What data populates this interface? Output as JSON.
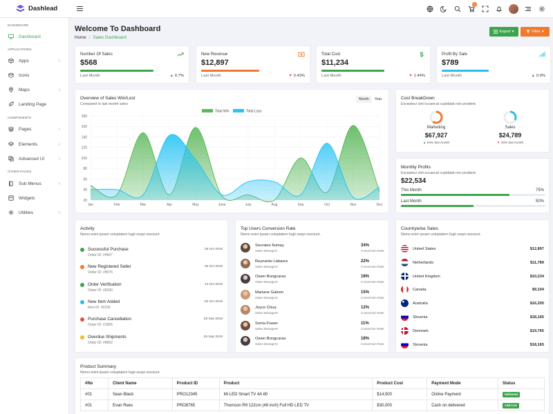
{
  "app": {
    "name": "Dashlead"
  },
  "topbar": {
    "cart_badge": "5",
    "icons": [
      "globe-icon",
      "moon-icon",
      "search-icon",
      "cart-icon",
      "fullscreen-icon",
      "bell-icon",
      "avatar",
      "menu-lines-icon",
      "gear-icon"
    ]
  },
  "sidebar": {
    "sections": [
      {
        "label": "DASHBOARD",
        "items": [
          {
            "label": "Dashboard",
            "icon": "monitor-icon",
            "active": true,
            "chevron": false
          }
        ]
      },
      {
        "label": "APPLICATIONS",
        "items": [
          {
            "label": "Apps",
            "icon": "cube-icon",
            "chevron": true
          },
          {
            "label": "Icons",
            "icon": "box-icon",
            "chevron": false
          },
          {
            "label": "Maps",
            "icon": "map-pin-icon",
            "chevron": true
          },
          {
            "label": "Landing Page",
            "icon": "rocket-icon",
            "chevron": false
          }
        ]
      },
      {
        "label": "COMPONENTS",
        "items": [
          {
            "label": "Pages",
            "icon": "layers-icon",
            "chevron": true
          },
          {
            "label": "Elements",
            "icon": "stack-icon",
            "chevron": true
          },
          {
            "label": "Advanced UI",
            "icon": "layers2-icon",
            "chevron": true
          }
        ]
      },
      {
        "label": "OTHER PAGES",
        "items": [
          {
            "label": "Sub Menus",
            "icon": "book-icon",
            "chevron": true
          },
          {
            "label": "Widgets",
            "icon": "widgets-icon",
            "chevron": false
          },
          {
            "label": "Utilities",
            "icon": "settings-icon",
            "chevron": true
          }
        ]
      }
    ]
  },
  "header": {
    "title": "Welcome To Dashboard",
    "breadcrumb": {
      "home": "Home",
      "current": "Sales Dashboard"
    },
    "export_label": "Export",
    "filter_label": "Filter"
  },
  "colors": {
    "green": "#3da44e",
    "orange": "#f0792b",
    "blue": "#2bbcf0",
    "red": "#e84a3c"
  },
  "stats": [
    {
      "label": "Number Of Sales",
      "value": "$568",
      "foot": "Last Month",
      "change": "0.7%",
      "dir": "up",
      "color": "#3da44e",
      "progress": 0.7,
      "icon": "trend-up-icon"
    },
    {
      "label": "New Revenue",
      "value": "$12,897",
      "foot": "Last Month",
      "change": "0.43%",
      "dir": "down",
      "color": "#f0792b",
      "progress": 0.55,
      "icon": "cash-icon"
    },
    {
      "label": "Total Cost",
      "value": "$11,234",
      "foot": "Last Month",
      "change": "1.44%",
      "dir": "down",
      "color": "#3da44e",
      "progress": 0.6,
      "icon": "dollar-icon"
    },
    {
      "label": "Profit By Sale",
      "value": "$789",
      "foot": "Last Month",
      "change": "0.9%",
      "dir": "up",
      "color": "#2bbcf0",
      "progress": 0.45,
      "icon": "signal-icon"
    }
  ],
  "overview": {
    "title": "Overview of Sales Win/Lost",
    "subtitle": "Compared to last month sales",
    "toggle": [
      "Month",
      "Year"
    ]
  },
  "chart_data": {
    "type": "area",
    "categories": [
      "Jan",
      "Feb",
      "Mar",
      "Apr",
      "May",
      "June",
      "July",
      "Aug",
      "Sep",
      "Oct",
      "Nov",
      "Dec"
    ],
    "series": [
      {
        "name": "Total Win",
        "color": "#5cb85c",
        "values": [
          48,
          30,
          148,
          30,
          158,
          28,
          30,
          20,
          100,
          35,
          162,
          36
        ]
      },
      {
        "name": "Total Loss",
        "color": "#2bc4f3",
        "values": [
          40,
          40,
          30,
          143,
          97,
          30,
          55,
          55,
          30,
          128,
          25,
          45
        ]
      }
    ],
    "ylim": [
      20,
      180
    ],
    "yticks": [
      20,
      40,
      60,
      80,
      100,
      120,
      140,
      160,
      180
    ],
    "legend": "top-center",
    "grid": true
  },
  "cost": {
    "title": "Cost BreakDown",
    "subtitle": "Excepteur sint occaecat cupidatat non proident.",
    "items": [
      {
        "name": "Marketing",
        "value": "$67,927",
        "change": "54% last month",
        "dir": "up",
        "color": "#f0792b",
        "fraction": 0.6
      },
      {
        "name": "Sales",
        "value": "$24,789",
        "change": "33% last month",
        "dir": "down",
        "color": "#2bbcf0",
        "fraction": 0.33
      }
    ]
  },
  "monthly": {
    "title": "Monthly Profits",
    "subtitle": "Excepteur sint occaecat cupidatat non proident.",
    "value": "$22,534",
    "rows": [
      {
        "label": "This Month",
        "pct": "75%",
        "fraction": 0.75
      },
      {
        "label": "Last Month",
        "pct": "50%",
        "fraction": 0.5
      }
    ]
  },
  "activity": {
    "title": "Activity",
    "subtitle": "Nemo enim ipsam voluptatem fugit sequi nesciunt.",
    "items": [
      {
        "title": "Successful Purchase",
        "sub": "Order ID: #4567",
        "date": "29 Oct 2019",
        "color": "#3da44e"
      },
      {
        "title": "New Registered Seller",
        "sub": "Order ID: #8976",
        "date": "25 Oct 2019",
        "color": "#f0792b"
      },
      {
        "title": "Order Verification",
        "sub": "Order ID: #6290",
        "date": "14 Oct 2019",
        "color": "#3da44e"
      },
      {
        "title": "New Item Added",
        "sub": "Item ID: #0235",
        "date": "02 Oct 2019",
        "color": "#2bbcf0"
      },
      {
        "title": "Purchase Cancellation",
        "sub": "Order ID: #1905",
        "date": "28 Sep 2019",
        "color": "#e84a3c"
      },
      {
        "title": "Overdue Shipments",
        "sub": "Order ID: #8902",
        "date": "25 Sep 2019",
        "color": "#f5b82e"
      }
    ]
  },
  "top_users": {
    "title": "Top Users Conversion Rate",
    "subtitle": "Nemo enim ipsam voluptatem fugit sequi nesciunt.",
    "items": [
      {
        "name": "Socrates Itumay",
        "role": "Sales Manager1",
        "pct": "34%",
        "pct_label": "Conversion Rate",
        "tone": "#5a4a3f"
      },
      {
        "name": "Reynante Labares",
        "role": "Sales Manager2",
        "pct": "22%",
        "pct_label": "Conversion Rate",
        "tone": "#8a6a55"
      },
      {
        "name": "Owen Bongcaras",
        "role": "Sales Manager3",
        "pct": "18%",
        "pct_label": "Conversion Rate",
        "tone": "#3f3f48"
      },
      {
        "name": "Mariane Galeon",
        "role": "Sales Manager4",
        "pct": "15%",
        "pct_label": "Conversion Rate",
        "tone": "#c79a7a"
      },
      {
        "name": "Joyce Chua",
        "role": "Sales Manager5",
        "pct": "12%",
        "pct_label": "Conversion Rate",
        "tone": "#b5876a"
      },
      {
        "name": "Sonia Fraser",
        "role": "Sales Manager6",
        "pct": "11%",
        "pct_label": "Conversion Rate",
        "tone": "#6b4e42"
      },
      {
        "name": "Owen Bongcaras",
        "role": "Sales Manager3",
        "pct": "18%",
        "pct_label": "Conversion Rate",
        "tone": "#3f3f48"
      }
    ]
  },
  "countries": {
    "title": "Countrywise Sales",
    "subtitle": "Nemo enim ipsam voluptatem fugit sequi nesciunt.",
    "items": [
      {
        "name": "United States",
        "value": "$12,897",
        "flag": "us-flag-icon"
      },
      {
        "name": "Netherlands",
        "value": "$11,789",
        "flag": "nl-flag-icon"
      },
      {
        "name": "United Kingdom",
        "value": "$10,234",
        "flag": "uk-flag-icon"
      },
      {
        "name": "Canada",
        "value": "$9,104",
        "flag": "ca-flag-icon"
      },
      {
        "name": "Australia",
        "value": "$16,205",
        "flag": "au-flag-icon"
      },
      {
        "name": "Slovenia",
        "value": "$18,165",
        "flag": "si-flag-icon"
      },
      {
        "name": "Denmark",
        "value": "$19,765",
        "flag": "dk-flag-icon"
      },
      {
        "name": "Slovenia",
        "value": "$18,165",
        "flag": "si-flag-icon"
      }
    ]
  },
  "product_summary": {
    "title": "Product Summary",
    "subtitle": "Nemo enim ipsam voluptatem fugit sequi nesciunt.",
    "columns": [
      "#No",
      "Client Name",
      "Product ID",
      "Product",
      "Product Cost",
      "Payment Mode",
      "Status"
    ],
    "rows": [
      {
        "no": "#01",
        "client": "Sean Black",
        "pid": "PRO12345",
        "product": "Mi LED Smart TV 4A 80",
        "cost": "$14,500",
        "mode": "Online Payment",
        "status": "Delivered",
        "status_color": "#3da44e"
      },
      {
        "no": "#01",
        "client": "Evan Rees",
        "pid": "PRO8765",
        "product": "Thomson R9 122cm (48 inch) Full HD LED TV",
        "cost": "$30,000",
        "mode": "Cash on delivered",
        "status": "Add Cart",
        "status_color": "#3da44e"
      }
    ]
  }
}
